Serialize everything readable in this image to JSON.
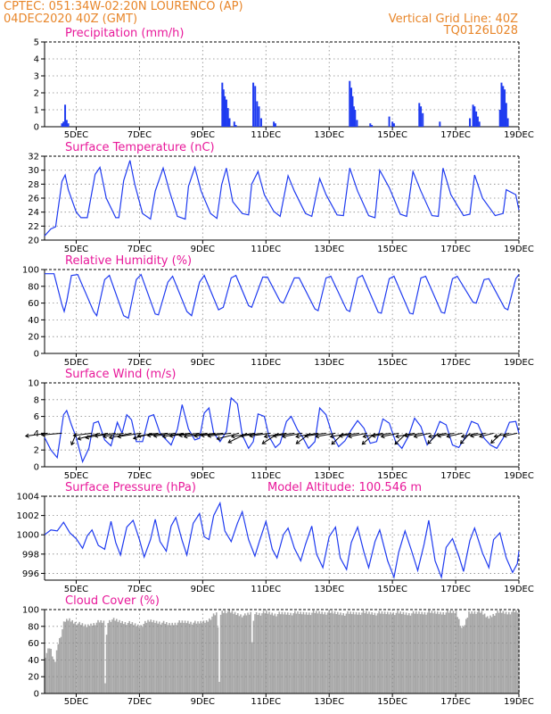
{
  "header": {
    "line1_left": "CPTEC:   051:34W-02:20N   LOURENCO (AP)",
    "line2_left": "04DEC2020 40Z (GMT)",
    "line2_right": "Vertical Grid Line: 40Z",
    "line3_right": "TQ0126L028"
  },
  "colors": {
    "header": "#e8862a",
    "title": "#e8199a",
    "line": "#1f3bf0",
    "cloud": "#a8a8a8",
    "arrow": "#000000"
  },
  "x_axis": {
    "ticks": [
      "5DEC",
      "7DEC",
      "9DEC",
      "11DEC",
      "13DEC",
      "15DEC",
      "17DEC",
      "19DEC"
    ],
    "tick_days": [
      5,
      7,
      9,
      11,
      13,
      15,
      17,
      19
    ],
    "xlim_days": [
      4.0,
      19.0
    ]
  },
  "chart_data": [
    {
      "id": "precip",
      "type": "bar",
      "title": "Precipitation (mm/h)",
      "ylim": [
        0,
        5
      ],
      "yticks": [
        "0",
        "1",
        "2",
        "3",
        "4",
        "5"
      ],
      "time_days": [
        4.55,
        4.6,
        4.65,
        4.7,
        4.75,
        9.62,
        9.66,
        9.7,
        9.75,
        9.8,
        9.85,
        10.0,
        10.05,
        10.6,
        10.66,
        10.72,
        10.78,
        10.85,
        11.25,
        11.3,
        13.65,
        13.7,
        13.74,
        13.78,
        13.82,
        13.88,
        14.3,
        14.35,
        14.9,
        15.0,
        15.05,
        15.85,
        15.9,
        15.96,
        16.5,
        17.45,
        17.55,
        17.6,
        17.65,
        17.7,
        17.75,
        18.4,
        18.45,
        18.5,
        18.55,
        18.6,
        18.65
      ],
      "values": [
        0.2,
        0.3,
        1.3,
        0.4,
        0.2,
        2.6,
        2.2,
        1.8,
        1.6,
        1.1,
        0.5,
        0.3,
        0.1,
        2.6,
        2.4,
        1.5,
        1.2,
        0.5,
        0.3,
        0.2,
        2.7,
        2.3,
        1.8,
        1.2,
        1.0,
        0.4,
        0.2,
        0.1,
        0.6,
        0.3,
        0.2,
        1.4,
        1.2,
        0.8,
        0.3,
        0.5,
        1.3,
        1.2,
        0.9,
        0.6,
        0.3,
        1.0,
        2.6,
        2.4,
        2.2,
        1.4,
        0.5
      ]
    },
    {
      "id": "temp",
      "type": "line",
      "title": "Surface Temperature (nC)",
      "ylim": [
        20,
        32
      ],
      "yticks": [
        "20",
        "22",
        "24",
        "26",
        "28",
        "30",
        "32"
      ],
      "x": [
        4.0,
        4.2,
        4.35,
        4.55,
        4.65,
        4.75,
        5.0,
        5.15,
        5.35,
        5.6,
        5.75,
        5.95,
        6.25,
        6.35,
        6.5,
        6.7,
        6.85,
        7.1,
        7.35,
        7.5,
        7.75,
        7.95,
        8.2,
        8.45,
        8.55,
        8.75,
        8.95,
        9.25,
        9.45,
        9.6,
        9.75,
        9.95,
        10.25,
        10.45,
        10.55,
        10.75,
        10.95,
        11.25,
        11.45,
        11.7,
        11.9,
        12.25,
        12.45,
        12.7,
        12.9,
        13.25,
        13.45,
        13.65,
        13.9,
        14.25,
        14.45,
        14.6,
        14.9,
        15.25,
        15.45,
        15.65,
        15.9,
        16.25,
        16.45,
        16.6,
        16.85,
        17.25,
        17.45,
        17.6,
        17.85,
        18.25,
        18.5,
        18.6,
        18.9,
        19.0
      ],
      "values": [
        20.6,
        21.6,
        21.9,
        28.4,
        29.3,
        27.2,
        24.0,
        23.2,
        23.2,
        29.4,
        30.4,
        26.0,
        23.2,
        23.2,
        28.5,
        31.4,
        28.0,
        23.8,
        23.0,
        27.0,
        30.3,
        27.0,
        23.4,
        23.0,
        27.7,
        30.4,
        27.0,
        23.8,
        23.1,
        27.9,
        30.3,
        25.5,
        23.8,
        23.6,
        28.0,
        29.8,
        26.5,
        24.1,
        23.4,
        29.2,
        27.0,
        23.8,
        23.4,
        28.8,
        26.5,
        23.6,
        23.5,
        30.3,
        27.0,
        23.5,
        23.2,
        30.0,
        27.5,
        23.7,
        23.4,
        29.8,
        27.0,
        23.5,
        23.4,
        30.3,
        26.5,
        23.5,
        23.7,
        29.3,
        26.0,
        23.5,
        23.8,
        27.2,
        26.5,
        24.3
      ]
    },
    {
      "id": "rh",
      "type": "line",
      "title": "Relative Humidity (%)",
      "ylim": [
        0,
        100
      ],
      "yticks": [
        "0",
        "20",
        "40",
        "60",
        "80",
        "100"
      ],
      "x": [
        4.0,
        4.3,
        4.55,
        4.62,
        4.7,
        4.85,
        5.05,
        5.55,
        5.65,
        5.9,
        6.05,
        6.5,
        6.65,
        6.9,
        7.05,
        7.5,
        7.6,
        7.9,
        8.05,
        8.5,
        8.65,
        8.9,
        9.05,
        9.5,
        9.65,
        9.9,
        10.05,
        10.45,
        10.55,
        10.9,
        11.05,
        11.45,
        11.55,
        11.9,
        12.05,
        12.55,
        12.65,
        12.9,
        13.05,
        13.55,
        13.65,
        13.9,
        14.05,
        14.55,
        14.65,
        14.9,
        15.05,
        15.55,
        15.65,
        15.9,
        16.05,
        16.55,
        16.65,
        16.9,
        17.05,
        17.55,
        17.65,
        17.9,
        18.05,
        18.55,
        18.65,
        18.9,
        19.0
      ],
      "values": [
        95,
        95,
        58,
        50,
        62,
        93,
        94,
        50,
        45,
        88,
        93,
        45,
        42,
        88,
        94,
        47,
        46,
        85,
        92,
        50,
        45,
        85,
        93,
        52,
        55,
        90,
        93,
        57,
        55,
        91,
        91,
        62,
        60,
        90,
        90,
        53,
        51,
        90,
        92,
        52,
        50,
        90,
        93,
        49,
        48,
        89,
        92,
        48,
        47,
        90,
        92,
        49,
        48,
        89,
        92,
        61,
        60,
        88,
        89,
        54,
        52,
        89,
        94
      ]
    },
    {
      "id": "wind",
      "type": "line",
      "title": "Surface Wind (m/s)",
      "ylim": [
        0,
        10
      ],
      "yticks": [
        "0",
        "2",
        "4",
        "6",
        "8",
        "10"
      ],
      "x": [
        4.0,
        4.2,
        4.4,
        4.6,
        4.7,
        4.85,
        5.0,
        5.2,
        5.4,
        5.55,
        5.7,
        5.9,
        6.1,
        6.3,
        6.45,
        6.6,
        6.75,
        6.9,
        7.1,
        7.3,
        7.45,
        7.65,
        7.85,
        8.0,
        8.2,
        8.35,
        8.55,
        8.75,
        8.9,
        9.05,
        9.2,
        9.35,
        9.55,
        9.75,
        9.9,
        10.1,
        10.25,
        10.45,
        10.6,
        10.75,
        10.95,
        11.1,
        11.3,
        11.45,
        11.65,
        11.8,
        12.0,
        12.15,
        12.35,
        12.55,
        12.7,
        12.9,
        13.1,
        13.3,
        13.5,
        13.7,
        13.9,
        14.1,
        14.3,
        14.5,
        14.7,
        14.9,
        15.1,
        15.3,
        15.5,
        15.7,
        15.9,
        16.1,
        16.3,
        16.5,
        16.7,
        16.9,
        17.1,
        17.3,
        17.5,
        17.7,
        17.9,
        18.1,
        18.3,
        18.5,
        18.7,
        18.9,
        19.0
      ],
      "values": [
        3.5,
        2.0,
        1.1,
        6.2,
        6.7,
        5.0,
        3.5,
        0.6,
        2.2,
        5.2,
        5.4,
        3.2,
        2.5,
        5.3,
        4.0,
        6.2,
        5.6,
        3.0,
        3.0,
        6.0,
        6.2,
        4.0,
        3.2,
        2.6,
        4.5,
        7.4,
        4.5,
        3.2,
        3.4,
        6.4,
        7.0,
        4.0,
        3.0,
        4.2,
        8.2,
        7.5,
        3.8,
        2.2,
        3.0,
        6.3,
        6.0,
        3.6,
        2.3,
        2.8,
        5.4,
        6.0,
        4.4,
        3.6,
        2.2,
        3.0,
        7.0,
        6.2,
        3.8,
        2.4,
        3.1,
        4.4,
        5.5,
        4.6,
        2.8,
        3.0,
        5.7,
        5.2,
        3.0,
        2.2,
        3.6,
        5.8,
        4.8,
        2.6,
        3.5,
        5.4,
        5.0,
        2.6,
        2.3,
        3.5,
        5.4,
        5.1,
        3.4,
        2.6,
        2.2,
        3.4,
        5.3,
        5.4,
        4.0
      ],
      "vector_times": [
        4.1,
        4.55,
        5.0,
        5.5,
        5.75,
        6.0,
        6.25,
        6.5,
        6.75,
        7.05,
        7.4,
        7.6,
        7.9,
        8.15,
        8.4,
        8.6,
        8.9,
        9.15,
        9.4,
        9.65,
        9.9,
        10.15,
        10.4,
        10.65,
        10.9,
        11.15,
        11.4,
        11.65,
        11.9,
        12.15,
        12.4,
        12.65,
        12.9,
        13.2,
        13.45,
        13.7,
        13.95,
        14.2,
        14.45,
        14.7,
        14.95,
        15.2,
        15.45,
        15.7,
        15.95,
        16.2,
        16.45,
        16.7,
        16.95,
        17.2,
        17.45,
        17.7,
        17.95,
        18.2,
        18.45,
        18.7,
        18.95
      ],
      "vector_u": [
        -3.8,
        -3.5,
        -0.8,
        -3.2,
        -3.8,
        -3.8,
        -3.6,
        -3.5,
        -3.8,
        -4.0,
        -3.2,
        -3.6,
        -3.5,
        -3.8,
        -3.6,
        -3.5,
        -3.5,
        -4.0,
        -3.6,
        -3.8,
        -4.0,
        -3.8,
        -3.2,
        -4.0,
        -3.8,
        -3.6,
        -2.8,
        -3.8,
        -3.6,
        -3.4,
        -2.4,
        -3.8,
        -3.6,
        -3.4,
        -2.0,
        -3.6,
        -3.4,
        -3.2,
        -2.2,
        -3.4,
        -3.2,
        -3.0,
        -2.0,
        -3.2,
        -3.0,
        -2.8,
        -1.8,
        -3.0,
        -2.8,
        -2.6,
        -1.6,
        -2.8,
        -2.6,
        -2.4,
        -1.8,
        -2.6,
        -2.4
      ],
      "vector_v": [
        -0.5,
        -0.3,
        -2.0,
        -0.4,
        -1.0,
        -0.8,
        -0.5,
        -0.6,
        -0.8,
        -0.6,
        -0.9,
        -0.5,
        -0.4,
        -0.5,
        -0.6,
        -0.5,
        -0.4,
        -0.6,
        -0.5,
        -0.4,
        -0.5,
        -1.0,
        -1.6,
        -0.6,
        -0.5,
        -0.5,
        -1.8,
        -0.6,
        -0.5,
        -0.6,
        -1.8,
        -0.6,
        -0.5,
        -0.6,
        -1.9,
        -0.6,
        -0.5,
        -0.6,
        -1.9,
        -0.6,
        -0.5,
        -0.6,
        -1.9,
        -0.6,
        -0.5,
        -0.6,
        -1.8,
        -0.6,
        -0.5,
        -0.6,
        -1.8,
        -0.6,
        -0.5,
        -0.6,
        -1.7,
        -0.6,
        -0.5
      ]
    },
    {
      "id": "pressure",
      "type": "line",
      "title": "Surface Pressure (hPa)",
      "annotation": "Model Altitude: 100.546 m",
      "ylim": [
        995.3,
        1004
      ],
      "yticks": [
        "996",
        "998",
        "1000",
        "1002",
        "1004"
      ],
      "x": [
        4.0,
        4.2,
        4.4,
        4.6,
        4.8,
        5.0,
        5.2,
        5.35,
        5.5,
        5.7,
        5.9,
        6.1,
        6.25,
        6.4,
        6.6,
        6.8,
        7.0,
        7.15,
        7.35,
        7.5,
        7.65,
        7.85,
        8.0,
        8.15,
        8.35,
        8.5,
        8.7,
        8.9,
        9.05,
        9.2,
        9.35,
        9.55,
        9.7,
        9.9,
        10.1,
        10.25,
        10.45,
        10.65,
        10.8,
        11.0,
        11.2,
        11.35,
        11.55,
        11.7,
        11.9,
        12.1,
        12.25,
        12.45,
        12.6,
        12.8,
        13.0,
        13.2,
        13.35,
        13.55,
        13.7,
        13.9,
        14.1,
        14.25,
        14.45,
        14.6,
        14.85,
        15.05,
        15.2,
        15.4,
        15.6,
        15.8,
        16.0,
        16.15,
        16.35,
        16.55,
        16.7,
        16.9,
        17.1,
        17.25,
        17.45,
        17.6,
        17.85,
        18.05,
        18.2,
        18.4,
        18.6,
        18.8,
        18.95,
        19.0
      ],
      "values": [
        1000.0,
        1000.5,
        1000.4,
        1001.3,
        1000.2,
        999.6,
        998.6,
        999.9,
        1000.5,
        998.9,
        998.5,
        1001.4,
        999.2,
        997.9,
        1000.8,
        1001.5,
        999.5,
        997.7,
        999.5,
        1001.6,
        999.3,
        998.3,
        1000.9,
        1001.8,
        999.4,
        997.9,
        1001.2,
        1002.2,
        999.8,
        999.5,
        1002.0,
        1003.3,
        1000.4,
        999.3,
        1001.2,
        1002.4,
        999.5,
        997.8,
        999.4,
        1001.4,
        998.5,
        997.6,
        1000.0,
        1000.7,
        998.6,
        997.3,
        999.0,
        1000.9,
        998.0,
        996.6,
        999.8,
        1000.8,
        997.6,
        996.4,
        999.2,
        1000.8,
        998.2,
        996.6,
        999.3,
        1000.5,
        997.3,
        995.6,
        998.2,
        1000.4,
        998.4,
        996.3,
        999.0,
        1001.5,
        997.3,
        995.6,
        998.7,
        999.6,
        997.8,
        996.2,
        999.4,
        1000.7,
        998.1,
        996.6,
        999.5,
        1000.2,
        997.6,
        996.1,
        997.0,
        998.3
      ]
    },
    {
      "id": "cloud",
      "type": "area",
      "title": "Cloud Cover (%)",
      "ylim": [
        0,
        100
      ],
      "yticks": [
        "0",
        "20",
        "40",
        "60",
        "80",
        "100"
      ],
      "x": [
        4.0,
        4.15,
        4.3,
        4.4,
        4.5,
        4.6,
        4.75,
        4.9,
        5.1,
        5.3,
        5.5,
        5.7,
        5.85,
        5.9,
        5.95,
        6.1,
        6.4,
        6.7,
        7.0,
        7.3,
        7.6,
        7.9,
        8.2,
        8.5,
        8.8,
        9.1,
        9.3,
        9.45,
        9.5,
        9.55,
        9.7,
        9.9,
        10.1,
        10.3,
        10.5,
        10.55,
        10.6,
        10.8,
        11.0,
        11.3,
        11.6,
        12.0,
        12.5,
        13.0,
        13.5,
        14.0,
        14.5,
        15.0,
        15.5,
        16.0,
        16.5,
        17.0,
        17.2,
        17.4,
        17.6,
        17.8,
        18.0,
        18.2,
        18.4,
        18.6,
        18.8,
        19.0
      ],
      "values": [
        45,
        55,
        35,
        60,
        70,
        85,
        88,
        85,
        82,
        80,
        83,
        85,
        85,
        5,
        85,
        88,
        85,
        83,
        80,
        86,
        85,
        82,
        84,
        85,
        83,
        86,
        92,
        95,
        5,
        97,
        98,
        96,
        94,
        92,
        95,
        55,
        96,
        95,
        96,
        94,
        95,
        95,
        96,
        96,
        95,
        96,
        95,
        96,
        95,
        96,
        96,
        97,
        75,
        96,
        97,
        96,
        90,
        95,
        97,
        96,
        97,
        97
      ]
    }
  ]
}
